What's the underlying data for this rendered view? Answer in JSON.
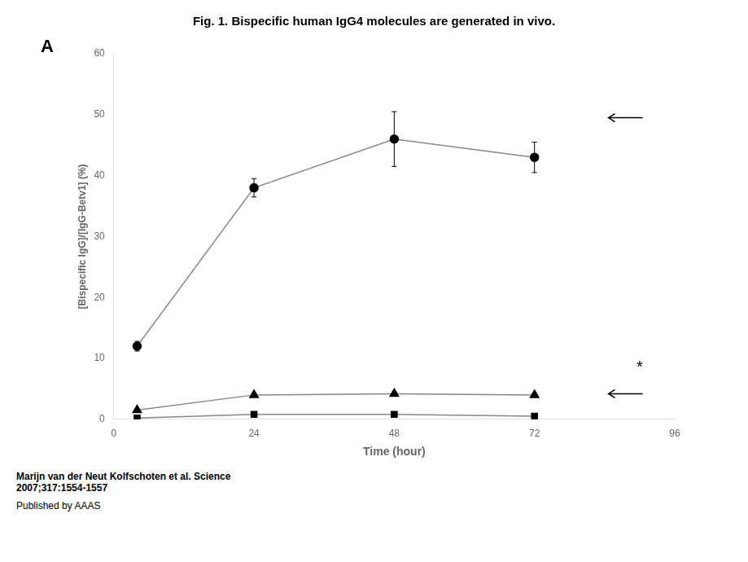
{
  "chart_data": {
    "type": "line",
    "title": "Fig. 1. Bispecific human IgG4 molecules are generated in vivo.",
    "panel_label": "A",
    "xlabel": "Time (hour)",
    "ylabel": "[Bispecific IgG]/[IgG-Betv1] (%)",
    "x": [
      4,
      24,
      48,
      72
    ],
    "series": [
      {
        "marker": "circle",
        "color": "#888888",
        "values": [
          12,
          38,
          46,
          43
        ],
        "yerr": [
          0.8,
          1.5,
          4.5,
          2.5
        ]
      },
      {
        "marker": "triangle",
        "color": "#888888",
        "values": [
          1.5,
          4.0,
          4.2,
          4.0
        ],
        "yerr": [
          0.3,
          0.3,
          0.3,
          0.3
        ]
      },
      {
        "marker": "square",
        "color": "#888888",
        "values": [
          0.2,
          0.8,
          0.8,
          0.5
        ],
        "yerr": [
          0.1,
          0.1,
          0.1,
          0.1
        ]
      }
    ],
    "xlim": [
      0,
      96
    ],
    "ylim": [
      0,
      60
    ],
    "xticks": [
      0,
      24,
      48,
      72,
      96
    ],
    "yticks": [
      0,
      10,
      20,
      30,
      40,
      50,
      60
    ],
    "grid": false,
    "annotations": [
      {
        "text": "*",
        "x": 90,
        "y": 8.5
      }
    ],
    "arrows": [
      {
        "x": 88,
        "y": 49.5
      },
      {
        "x": 88,
        "y": 4.2
      }
    ],
    "footnotes": [
      "Marijn van der Neut Kolfschoten et al. Science\n2007;317:1554-1557",
      "Published by AAAS"
    ]
  }
}
